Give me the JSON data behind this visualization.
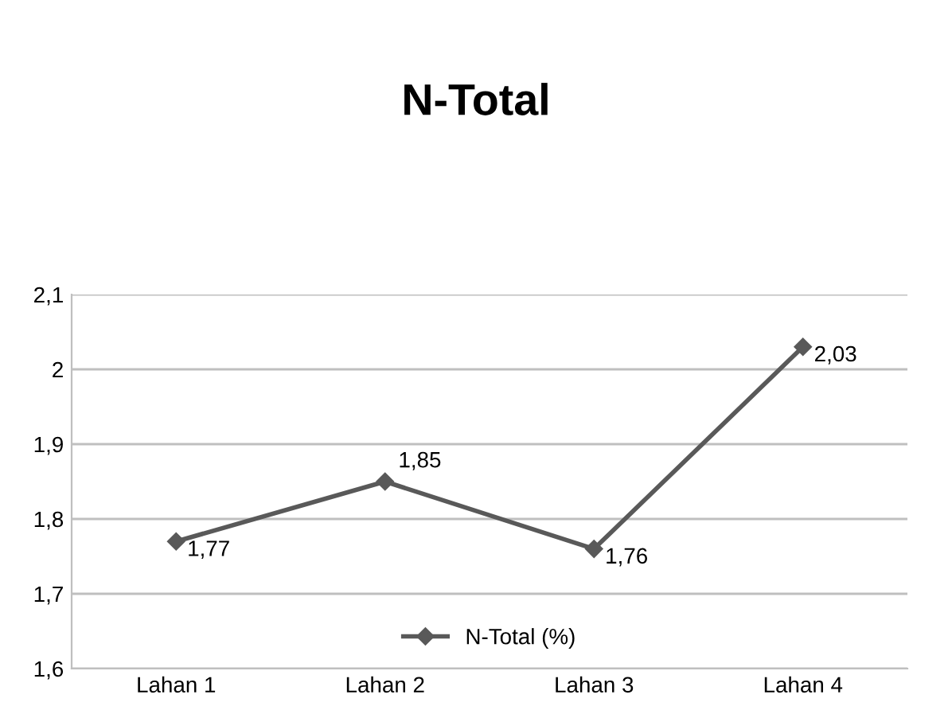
{
  "chart_data": {
    "type": "line",
    "title": "N-Total",
    "categories": [
      "Lahan 1",
      "Lahan 2",
      "Lahan 3",
      "Lahan 4"
    ],
    "series": [
      {
        "name": "N-Total (%)",
        "color": "#595959",
        "values": [
          1.77,
          1.85,
          1.76,
          2.03
        ],
        "value_labels": [
          "1,77",
          "1,85",
          "1,76",
          "2,03"
        ]
      }
    ],
    "ylim": [
      1.6,
      2.1
    ],
    "yticks": [
      {
        "value": 1.6,
        "label": "1,6"
      },
      {
        "value": 1.7,
        "label": "1,7"
      },
      {
        "value": 1.8,
        "label": "1,8"
      },
      {
        "value": 1.9,
        "label": "1,9"
      },
      2,
      {
        "value": 2.1,
        "label": "2,1"
      }
    ],
    "grid": "y",
    "legend": "bottom",
    "marker": "diamond",
    "line_style": "solid"
  }
}
